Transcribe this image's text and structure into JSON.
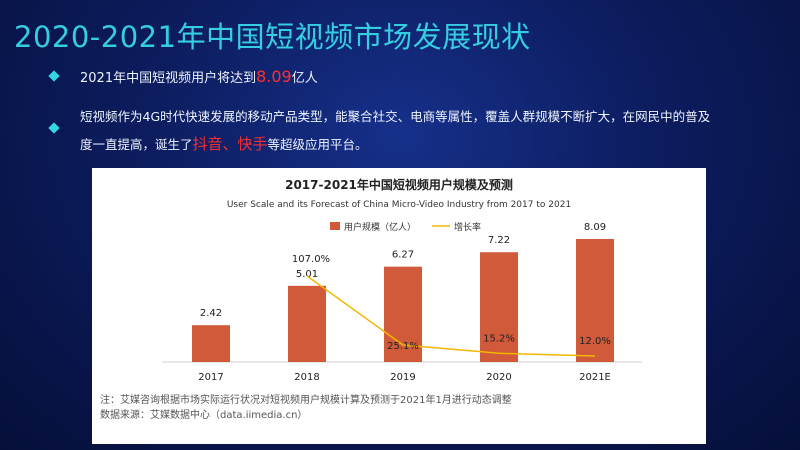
{
  "header": {
    "title": "2020-2021年中国短视频市场发展现状"
  },
  "bullets": {
    "b1_prefix": "2021年中国短视频用户将达到",
    "b1_highlight": "8.09",
    "b1_suffix": "亿人",
    "b2_line1": "短视频作为4G时代快速发展的移动产品类型，能聚合社交、电商等属性，覆盖人群规模不断扩大，在网民中的普及",
    "b2_line2_prefix": "度一直提高，诞生了",
    "b2_line2_highlight": "抖音、快手",
    "b2_line2_suffix": "等超级应用平台。"
  },
  "chart_data": {
    "type": "bar",
    "title": "2017-2021年中国短视频用户规模及预测",
    "subtitle": "User Scale and its Forecast of China Micro-Video Industry from 2017 to 2021",
    "categories": [
      "2017",
      "2018",
      "2019",
      "2020",
      "2021E"
    ],
    "series": [
      {
        "name": "用户规模（亿人）",
        "type": "bar",
        "values": [
          2.42,
          5.01,
          6.27,
          7.22,
          8.09
        ],
        "labels": [
          "2.42",
          "5.01",
          "6.27",
          "7.22",
          "8.09"
        ],
        "color": "#d05a3a"
      },
      {
        "name": "增长率",
        "type": "line",
        "values": [
          null,
          107.0,
          25.1,
          15.2,
          12.0
        ],
        "labels": [
          "",
          "107.0%",
          "25.1%",
          "15.2%",
          "12.0%"
        ],
        "color": "#f2b700"
      }
    ],
    "ylim_bar": [
      0,
      10
    ],
    "ylim_line": [
      0,
      120
    ],
    "legend_position": "top-center",
    "note": "注：艾媒咨询根据市场实际运行状况对短视频用户规模计算及预测于2021年1月进行动态调整",
    "source": "数据来源：艾媒数据中心（data.iimedia.cn）"
  }
}
